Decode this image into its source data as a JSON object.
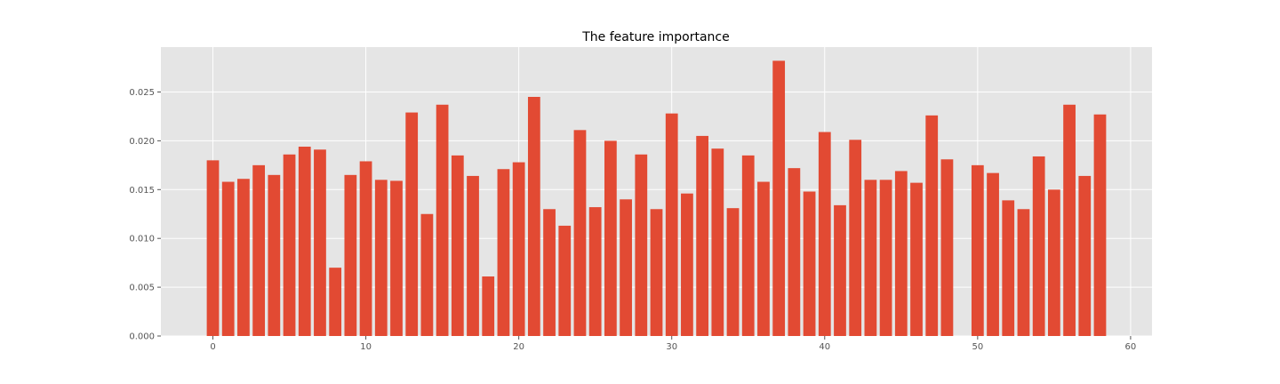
{
  "chart_data": {
    "type": "bar",
    "title": "The feature importance",
    "xlabel": "",
    "ylabel": "",
    "x": [
      0,
      1,
      2,
      3,
      4,
      5,
      6,
      7,
      8,
      9,
      10,
      11,
      12,
      13,
      14,
      15,
      16,
      17,
      18,
      19,
      20,
      21,
      22,
      23,
      24,
      25,
      26,
      27,
      28,
      29,
      30,
      31,
      32,
      33,
      34,
      35,
      36,
      37,
      38,
      39,
      40,
      41,
      42,
      43,
      44,
      45,
      46,
      47,
      48,
      49,
      50,
      51,
      52,
      53,
      54,
      55,
      56,
      57,
      58
    ],
    "values": [
      0.018,
      0.0158,
      0.0161,
      0.0175,
      0.0165,
      0.0186,
      0.0194,
      0.0191,
      0.007,
      0.0165,
      0.0179,
      0.016,
      0.0159,
      0.0229,
      0.0125,
      0.0237,
      0.0185,
      0.0164,
      0.0061,
      0.0171,
      0.0178,
      0.0245,
      0.013,
      0.0113,
      0.0211,
      0.0132,
      0.02,
      0.014,
      0.0186,
      0.013,
      0.0228,
      0.0146,
      0.0205,
      0.0192,
      0.0131,
      0.0185,
      0.0158,
      0.0282,
      0.0172,
      0.0148,
      0.0209,
      0.0134,
      0.0201,
      0.016,
      0.016,
      0.0169,
      0.0157,
      0.0226,
      0.0181,
      0.0,
      0.0175,
      0.0167,
      0.0139,
      0.013,
      0.0184,
      0.015,
      0.0237,
      0.0164,
      0.0227
    ],
    "xlim": [
      -3.4,
      61.4
    ],
    "ylim": [
      0,
      0.0296
    ],
    "xticks": [
      0,
      10,
      20,
      30,
      40,
      50,
      60
    ],
    "yticks": [
      0.0,
      0.005,
      0.01,
      0.015,
      0.02,
      0.025
    ],
    "ytick_labels": [
      "0.000",
      "0.005",
      "0.010",
      "0.015",
      "0.020",
      "0.025"
    ],
    "xtick_labels": [
      "0",
      "10",
      "20",
      "30",
      "40",
      "50",
      "60"
    ],
    "grid": true,
    "bar_color": "#E24A33",
    "plot_background": "#E5E5E5",
    "grid_color": "#FFFFFF"
  }
}
